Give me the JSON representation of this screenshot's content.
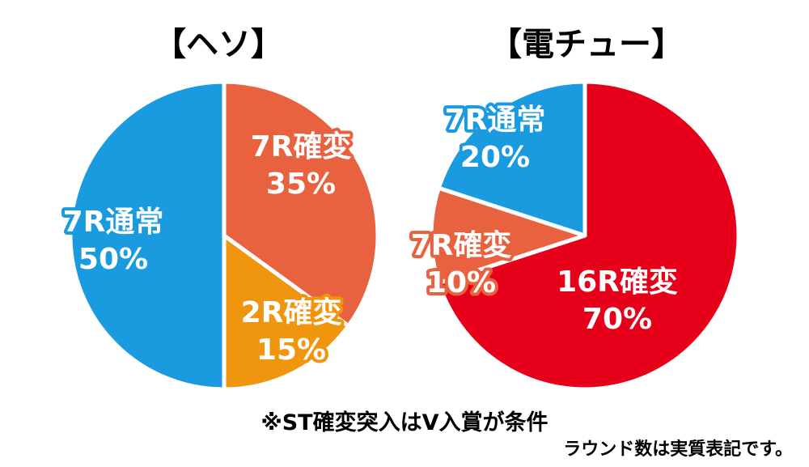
{
  "colors": {
    "blue": "#1a9be0",
    "salmon": "#e8623f",
    "orange": "#f0960e",
    "red": "#e60019",
    "border": "#ffffff"
  },
  "chart_data": [
    {
      "type": "pie",
      "title": "【ヘソ】",
      "slices": [
        {
          "line1": "7R確変",
          "line2": "35%",
          "value": 35,
          "color": "#e8623f"
        },
        {
          "line1": "2R確変",
          "line2": "15%",
          "value": 15,
          "color": "#f0960e"
        },
        {
          "line1": "7R通常",
          "line2": "50%",
          "value": 50,
          "color": "#1a9be0"
        }
      ]
    },
    {
      "type": "pie",
      "title": "【電チュー】",
      "slices": [
        {
          "line1": "16R確変",
          "line2": "70%",
          "value": 70,
          "color": "#e60019"
        },
        {
          "line1": "7R確変",
          "line2": "10%",
          "value": 10,
          "color": "#e8623f"
        },
        {
          "line1": "7R通常",
          "line2": "20%",
          "value": 20,
          "color": "#1a9be0"
        }
      ]
    }
  ],
  "notes": {
    "main": "※ST確変突入はV入賞が条件",
    "sub": "ラウンド数は実質表記です。"
  }
}
